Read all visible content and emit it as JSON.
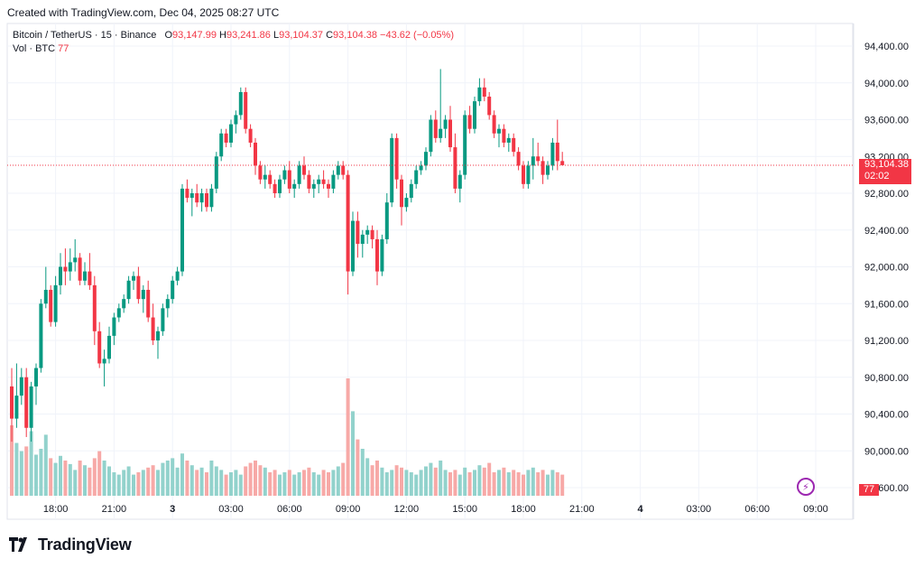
{
  "header": {
    "created": "Created with TradingView.com, Dec 04, 2025 08:27 UTC"
  },
  "legend": {
    "symbol": "Bitcoin / TetherUS · 15 · Binance",
    "o_label": "O",
    "o_value": "93,147.99",
    "h_label": "H",
    "h_value": "93,241.86",
    "l_label": "L",
    "l_value": "93,104.37",
    "c_label": "C",
    "c_value": "93,104.38",
    "change": "−43.62 (−0.05%)",
    "vol_label": "Vol · BTC",
    "vol_value": "77"
  },
  "last_price": {
    "price": "93,104.38",
    "countdown": "02:02"
  },
  "volume_tag": "77",
  "brand": "TradingView",
  "colors": {
    "up": "#089981",
    "down": "#f23645",
    "up_vol": "#92d2cc",
    "down_vol": "#f7a9a7",
    "grid": "#f0f3fa",
    "last_line": "#f23645"
  },
  "chart_data": {
    "type": "candlestick",
    "title": "Bitcoin / TetherUS · 15 · Binance",
    "ylim": [
      89600,
      94400
    ],
    "y_ticks": [
      "94,400.00",
      "94,000.00",
      "93,600.00",
      "93,200.00",
      "92,800.00",
      "92,400.00",
      "92,000.00",
      "91,600.00",
      "91,200.00",
      "90,800.00",
      "90,400.00",
      "90,000.00",
      "89,600.00"
    ],
    "y_tick_values": [
      94400,
      94000,
      93600,
      93200,
      92800,
      92400,
      92000,
      91600,
      91200,
      90800,
      90400,
      90000,
      89600
    ],
    "x_ticks": [
      {
        "label": "18:00",
        "index": 9
      },
      {
        "label": "21:00",
        "index": 21
      },
      {
        "label": "3",
        "index": 33
      },
      {
        "label": "03:00",
        "index": 45
      },
      {
        "label": "06:00",
        "index": 57
      },
      {
        "label": "09:00",
        "index": 69
      },
      {
        "label": "12:00",
        "index": 81
      },
      {
        "label": "15:00",
        "index": 93
      },
      {
        "label": "18:00",
        "index": 105
      },
      {
        "label": "21:00",
        "index": 117
      },
      {
        "label": "4",
        "index": 129
      },
      {
        "label": "03:00",
        "index": 141
      },
      {
        "label": "06:00",
        "index": 153
      },
      {
        "label": "09:00",
        "index": 165
      }
    ],
    "bold_ticks": [
      "3",
      "4"
    ],
    "last_price": 93104.38,
    "volume_max": 100,
    "candles": [
      [
        90700,
        90900,
        90100,
        90350,
        60
      ],
      [
        90350,
        90950,
        90250,
        90600,
        45
      ],
      [
        90600,
        90900,
        90500,
        90800,
        38
      ],
      [
        90800,
        90900,
        90150,
        90250,
        42
      ],
      [
        90250,
        90750,
        90100,
        90700,
        55
      ],
      [
        90700,
        90950,
        90500,
        90900,
        35
      ],
      [
        90900,
        91650,
        90850,
        91600,
        40
      ],
      [
        91600,
        92000,
        91550,
        91750,
        52
      ],
      [
        91750,
        91800,
        91350,
        91400,
        32
      ],
      [
        91400,
        91900,
        91350,
        91800,
        28
      ],
      [
        91800,
        92150,
        91700,
        92000,
        34
      ],
      [
        92000,
        92200,
        91800,
        91950,
        30
      ],
      [
        91950,
        92200,
        91850,
        92050,
        27
      ],
      [
        92050,
        92300,
        91950,
        92100,
        22
      ],
      [
        92100,
        92150,
        91800,
        91850,
        30
      ],
      [
        91850,
        92050,
        91800,
        91950,
        26
      ],
      [
        91950,
        92150,
        91750,
        91800,
        24
      ],
      [
        91800,
        91900,
        91150,
        91300,
        32
      ],
      [
        91300,
        91400,
        90900,
        90950,
        38
      ],
      [
        90950,
        91100,
        90700,
        91000,
        30
      ],
      [
        91000,
        91350,
        90950,
        91250,
        25
      ],
      [
        91250,
        91500,
        91150,
        91450,
        20
      ],
      [
        91450,
        91600,
        91400,
        91550,
        18
      ],
      [
        91550,
        91700,
        91500,
        91650,
        22
      ],
      [
        91650,
        91900,
        91600,
        91850,
        25
      ],
      [
        91850,
        91950,
        91750,
        91900,
        18
      ],
      [
        91900,
        92000,
        91600,
        91650,
        20
      ],
      [
        91650,
        91800,
        91500,
        91750,
        22
      ],
      [
        91750,
        91850,
        91400,
        91450,
        24
      ],
      [
        91450,
        91600,
        91150,
        91200,
        26
      ],
      [
        91200,
        91350,
        91000,
        91300,
        22
      ],
      [
        91300,
        91600,
        91250,
        91550,
        28
      ],
      [
        91550,
        91700,
        91450,
        91650,
        30
      ],
      [
        91650,
        91900,
        91600,
        91850,
        32
      ],
      [
        91850,
        92000,
        91800,
        91950,
        24
      ],
      [
        91950,
        92900,
        91900,
        92850,
        36
      ],
      [
        92850,
        92950,
        92700,
        92750,
        30
      ],
      [
        92750,
        92850,
        92550,
        92800,
        26
      ],
      [
        92800,
        92900,
        92650,
        92700,
        22
      ],
      [
        92700,
        92850,
        92600,
        92800,
        24
      ],
      [
        92800,
        92850,
        92600,
        92650,
        20
      ],
      [
        92650,
        92900,
        92600,
        92850,
        30
      ],
      [
        92850,
        93250,
        92800,
        93200,
        25
      ],
      [
        93200,
        93500,
        93150,
        93450,
        22
      ],
      [
        93450,
        93500,
        93300,
        93350,
        18
      ],
      [
        93350,
        93600,
        93300,
        93550,
        20
      ],
      [
        93550,
        93700,
        93450,
        93650,
        22
      ],
      [
        93650,
        93950,
        93600,
        93900,
        18
      ],
      [
        93900,
        93950,
        93450,
        93500,
        25
      ],
      [
        93500,
        93550,
        93300,
        93350,
        28
      ],
      [
        93350,
        93400,
        93000,
        93100,
        30
      ],
      [
        93100,
        93150,
        92900,
        92950,
        26
      ],
      [
        92950,
        93100,
        92850,
        93000,
        24
      ],
      [
        93000,
        93050,
        92850,
        92900,
        20
      ],
      [
        92900,
        92950,
        92750,
        92800,
        22
      ],
      [
        92800,
        93000,
        92750,
        92950,
        18
      ],
      [
        92950,
        93100,
        92900,
        93050,
        20
      ],
      [
        93050,
        93150,
        92800,
        92850,
        22
      ],
      [
        92850,
        92950,
        92750,
        92900,
        18
      ],
      [
        92900,
        93150,
        92850,
        93100,
        20
      ],
      [
        93100,
        93200,
        92950,
        93000,
        22
      ],
      [
        93000,
        93050,
        92800,
        92850,
        24
      ],
      [
        92850,
        92950,
        92750,
        92900,
        20
      ],
      [
        92900,
        93000,
        92800,
        92950,
        18
      ],
      [
        92950,
        93050,
        92850,
        92900,
        22
      ],
      [
        92900,
        92950,
        92750,
        92850,
        20
      ],
      [
        92850,
        93050,
        92800,
        93000,
        22
      ],
      [
        93000,
        93150,
        92950,
        93100,
        25
      ],
      [
        93100,
        93150,
        92950,
        93000,
        28
      ],
      [
        93000,
        93050,
        91700,
        91950,
        100
      ],
      [
        91950,
        92600,
        91900,
        92500,
        72
      ],
      [
        92500,
        92600,
        92100,
        92250,
        48
      ],
      [
        92250,
        92400,
        92100,
        92350,
        40
      ],
      [
        92350,
        92450,
        92250,
        92400,
        32
      ],
      [
        92400,
        92450,
        92200,
        92300,
        26
      ],
      [
        92300,
        92400,
        91800,
        91950,
        30
      ],
      [
        91950,
        92350,
        91900,
        92300,
        24
      ],
      [
        92300,
        92800,
        92250,
        92700,
        20
      ],
      [
        92700,
        93450,
        92650,
        93400,
        22
      ],
      [
        93400,
        93450,
        92850,
        92950,
        26
      ],
      [
        92950,
        93000,
        92450,
        92650,
        24
      ],
      [
        92650,
        92800,
        92600,
        92750,
        22
      ],
      [
        92750,
        92950,
        92700,
        92900,
        20
      ],
      [
        92900,
        93100,
        92850,
        93050,
        18
      ],
      [
        93050,
        93150,
        93000,
        93100,
        22
      ],
      [
        93100,
        93300,
        93050,
        93250,
        25
      ],
      [
        93250,
        93650,
        93200,
        93600,
        28
      ],
      [
        93600,
        93700,
        93350,
        93400,
        24
      ],
      [
        93400,
        94150,
        93350,
        93500,
        30
      ],
      [
        93500,
        93650,
        93400,
        93600,
        22
      ],
      [
        93600,
        93750,
        93250,
        93300,
        20
      ],
      [
        93300,
        93450,
        92800,
        92850,
        22
      ],
      [
        92850,
        93050,
        92700,
        93000,
        18
      ],
      [
        93000,
        93700,
        92950,
        93650,
        24
      ],
      [
        93650,
        93750,
        93450,
        93500,
        20
      ],
      [
        93500,
        93850,
        93450,
        93800,
        22
      ],
      [
        93800,
        94050,
        93750,
        93950,
        26
      ],
      [
        93950,
        94050,
        93800,
        93850,
        24
      ],
      [
        93850,
        93900,
        93600,
        93650,
        28
      ],
      [
        93650,
        93700,
        93400,
        93450,
        20
      ],
      [
        93450,
        93550,
        93300,
        93500,
        22
      ],
      [
        93500,
        93550,
        93300,
        93350,
        24
      ],
      [
        93350,
        93450,
        93250,
        93400,
        20
      ],
      [
        93400,
        93450,
        93200,
        93250,
        22
      ],
      [
        93250,
        93300,
        93050,
        93100,
        20
      ],
      [
        93100,
        93150,
        92850,
        92900,
        18
      ],
      [
        92900,
        93150,
        92850,
        93100,
        22
      ],
      [
        93100,
        93400,
        92950,
        93200,
        24
      ],
      [
        93200,
        93350,
        93100,
        93150,
        20
      ],
      [
        93150,
        93200,
        92900,
        93000,
        22
      ],
      [
        93000,
        93150,
        92950,
        93100,
        18
      ],
      [
        93100,
        93400,
        93050,
        93350,
        22
      ],
      [
        93350,
        93600,
        93050,
        93150,
        20
      ],
      [
        93150,
        93250,
        93100,
        93105,
        18
      ]
    ],
    "volumes_color": "by candle direction"
  }
}
